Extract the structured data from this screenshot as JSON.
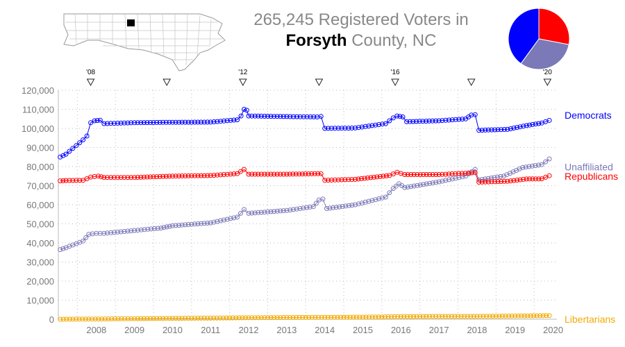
{
  "header": {
    "count": "265,245",
    "title_rest": "Registered Voters in",
    "county": "Forsyth",
    "suffix": "County, NC"
  },
  "pie": {
    "slices": [
      {
        "name": "Republicans",
        "value": 28,
        "color": "#ff0000"
      },
      {
        "name": "Unaffiliated",
        "value": 32,
        "color": "#7b79b8"
      },
      {
        "name": "Democrats",
        "value": 40,
        "color": "#0000ff"
      }
    ]
  },
  "chart_data": {
    "type": "line",
    "xlim": [
      2007.5,
      2020.6
    ],
    "ylim": [
      0,
      120000
    ],
    "x_ticks": [
      "2008",
      "2009",
      "2010",
      "2011",
      "2012",
      "2013",
      "2014",
      "2015",
      "2016",
      "2017",
      "2018",
      "2019",
      "2020"
    ],
    "y_ticks": [
      "0",
      "10,000",
      "20,000",
      "30,000",
      "40,000",
      "50,000",
      "60,000",
      "70,000",
      "80,000",
      "90,000",
      "100,000",
      "110,000",
      "120,000"
    ],
    "election_markers": [
      {
        "x": 2008.35,
        "label": "'08"
      },
      {
        "x": 2010.35,
        "label": ""
      },
      {
        "x": 2012.35,
        "label": "'12"
      },
      {
        "x": 2014.35,
        "label": ""
      },
      {
        "x": 2016.35,
        "label": "'16"
      },
      {
        "x": 2018.35,
        "label": ""
      },
      {
        "x": 2020.35,
        "label": "'20"
      }
    ],
    "series": [
      {
        "name": "Democrats",
        "color": "#0000ff",
        "points": [
          [
            2007.55,
            85000
          ],
          [
            2007.7,
            86500
          ],
          [
            2008.15,
            94000
          ],
          [
            2008.25,
            96000
          ],
          [
            2008.35,
            103000
          ],
          [
            2008.45,
            104000
          ],
          [
            2008.6,
            104300
          ],
          [
            2008.7,
            102500
          ],
          [
            2009.5,
            103000
          ],
          [
            2010.5,
            103200
          ],
          [
            2011.5,
            103300
          ],
          [
            2012.2,
            104500
          ],
          [
            2012.3,
            106500
          ],
          [
            2012.38,
            110000
          ],
          [
            2012.45,
            109500
          ],
          [
            2012.5,
            106500
          ],
          [
            2013.5,
            106200
          ],
          [
            2014.3,
            106000
          ],
          [
            2014.4,
            106300
          ],
          [
            2014.5,
            100000
          ],
          [
            2015.3,
            100200
          ],
          [
            2016.1,
            102500
          ],
          [
            2016.3,
            105500
          ],
          [
            2016.4,
            106500
          ],
          [
            2016.55,
            106000
          ],
          [
            2016.65,
            103500
          ],
          [
            2017.5,
            104000
          ],
          [
            2018.2,
            105000
          ],
          [
            2018.35,
            107000
          ],
          [
            2018.45,
            107200
          ],
          [
            2018.55,
            99000
          ],
          [
            2019.3,
            99500
          ],
          [
            2019.8,
            101500
          ],
          [
            2020.2,
            102800
          ],
          [
            2020.4,
            104200
          ]
        ]
      },
      {
        "name": "Unaffiliated",
        "color": "#7b79b8",
        "points": [
          [
            2007.55,
            36500
          ],
          [
            2007.7,
            37500
          ],
          [
            2008.15,
            41000
          ],
          [
            2008.3,
            44500
          ],
          [
            2008.5,
            45000
          ],
          [
            2008.7,
            45000
          ],
          [
            2009.5,
            46500
          ],
          [
            2010.2,
            47800
          ],
          [
            2010.5,
            49000
          ],
          [
            2011.5,
            50500
          ],
          [
            2012.2,
            53500
          ],
          [
            2012.38,
            57500
          ],
          [
            2012.5,
            55500
          ],
          [
            2013.5,
            57000
          ],
          [
            2014.2,
            59000
          ],
          [
            2014.35,
            62500
          ],
          [
            2014.45,
            63000
          ],
          [
            2014.55,
            58000
          ],
          [
            2015.3,
            60000
          ],
          [
            2016.1,
            64000
          ],
          [
            2016.3,
            68500
          ],
          [
            2016.45,
            71000
          ],
          [
            2016.6,
            69000
          ],
          [
            2017.5,
            72000
          ],
          [
            2018.2,
            75000
          ],
          [
            2018.45,
            78500
          ],
          [
            2018.55,
            73000
          ],
          [
            2019.2,
            75000
          ],
          [
            2019.7,
            79500
          ],
          [
            2020.2,
            81000
          ],
          [
            2020.4,
            84000
          ]
        ]
      },
      {
        "name": "Republicans",
        "color": "#ff0000",
        "points": [
          [
            2007.55,
            72500
          ],
          [
            2007.7,
            72700
          ],
          [
            2008.15,
            72800
          ],
          [
            2008.35,
            74500
          ],
          [
            2008.55,
            75000
          ],
          [
            2008.7,
            74300
          ],
          [
            2009.5,
            74300
          ],
          [
            2010.5,
            75000
          ],
          [
            2011.5,
            75300
          ],
          [
            2012.2,
            76300
          ],
          [
            2012.38,
            78500
          ],
          [
            2012.5,
            76000
          ],
          [
            2013.5,
            76000
          ],
          [
            2014.4,
            76300
          ],
          [
            2014.5,
            72800
          ],
          [
            2015.3,
            73300
          ],
          [
            2016.2,
            75300
          ],
          [
            2016.4,
            77000
          ],
          [
            2016.6,
            75800
          ],
          [
            2017.5,
            75800
          ],
          [
            2018.45,
            76800
          ],
          [
            2018.55,
            71800
          ],
          [
            2019.3,
            72300
          ],
          [
            2019.8,
            73500
          ],
          [
            2020.2,
            73600
          ],
          [
            2020.4,
            75200
          ]
        ]
      },
      {
        "name": "Libertarians",
        "color": "#f2a900",
        "points": [
          [
            2007.55,
            0
          ],
          [
            2008.3,
            100
          ],
          [
            2009.5,
            300
          ],
          [
            2010.5,
            500
          ],
          [
            2011.5,
            600
          ],
          [
            2012.5,
            800
          ],
          [
            2013.5,
            900
          ],
          [
            2014.5,
            1000
          ],
          [
            2015.5,
            1100
          ],
          [
            2016.5,
            1400
          ],
          [
            2017.5,
            1500
          ],
          [
            2018.5,
            1500
          ],
          [
            2019.5,
            1700
          ],
          [
            2020.4,
            1900
          ]
        ]
      }
    ]
  }
}
